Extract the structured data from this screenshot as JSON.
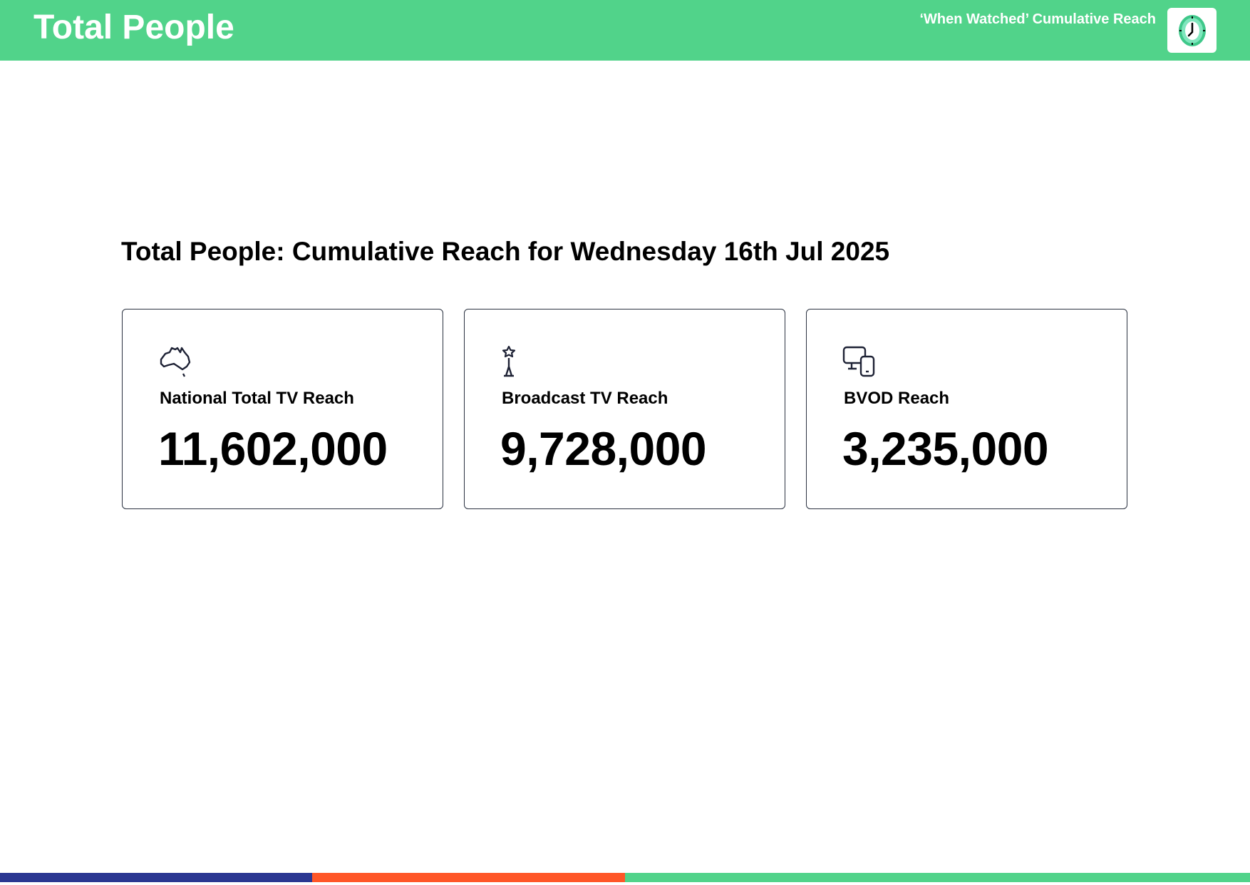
{
  "header": {
    "title": "Total People",
    "subtitle": "‘When Watched’ Cumulative Reach",
    "logo_icon": "clock-icon"
  },
  "heading": "Total People: Cumulative Reach for Wednesday 16th Jul 2025",
  "cards": [
    {
      "icon": "australia-map-icon",
      "label": "National Total TV Reach",
      "value": "11,602,000"
    },
    {
      "icon": "broadcast-tower-icon",
      "label": "Broadcast TV Reach",
      "value": "9,728,000"
    },
    {
      "icon": "devices-icon",
      "label": "BVOD Reach",
      "value": "3,235,000"
    }
  ],
  "colors": {
    "header": "#51d38a",
    "footer": [
      "#2b3791",
      "#ff5627",
      "#51d38a"
    ],
    "icon": "#1e2235"
  }
}
